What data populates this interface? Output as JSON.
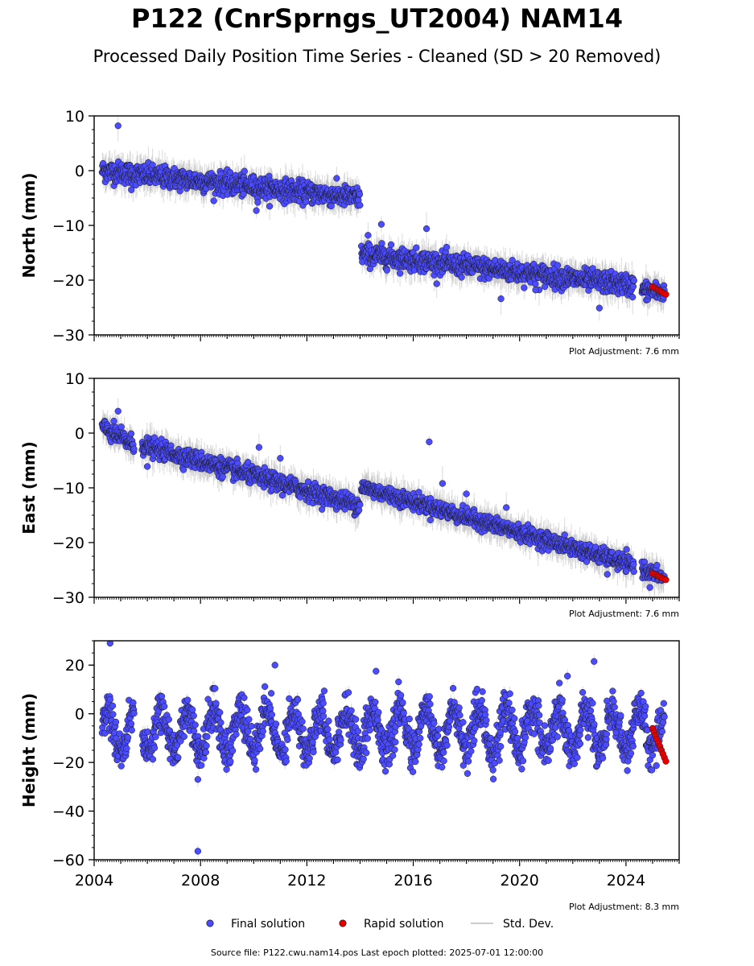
{
  "title": "P122 (CnrSprngs_UT2004) NAM14",
  "subtitle": "Processed Daily Position Time Series - Cleaned (SD > 20 Removed)",
  "source_line": "Source file: P122.cwu.nam14.pos  Last epoch plotted: 2025-07-01 12:00:00",
  "colors": {
    "final": "#4b4bff",
    "rapid": "#e60000",
    "stddev": "#bbbbbb"
  },
  "legend": [
    {
      "key": "final",
      "label": "Final solution"
    },
    {
      "key": "rapid",
      "label": "Rapid solution"
    },
    {
      "key": "stddev",
      "label": "Std. Dev."
    }
  ],
  "chart_data": [
    {
      "type": "scatter",
      "name": "north",
      "ylabel": "North (mm)",
      "ylim": [
        -30,
        10
      ],
      "yticks": [
        10,
        0,
        -10,
        -20,
        -30
      ],
      "xlim": [
        2004.0,
        2026.0
      ],
      "adjustment": "Plot Adjustment: 7.6 mm",
      "trend": [
        {
          "x0": 2004.3,
          "x1": 2014.0,
          "y0": 0.0,
          "y1": -5.0,
          "noise": 1.2
        },
        {
          "x0": 2014.05,
          "x1": 2024.3,
          "y0": -15.2,
          "y1": -21.0,
          "noise": 1.2
        },
        {
          "x0": 2024.6,
          "x1": 2025.45,
          "y0": -21.8,
          "y1": -22.3,
          "noise": 1.0
        }
      ],
      "outliers": [
        [
          2004.9,
          8.2
        ],
        [
          2005.4,
          -3.5
        ],
        [
          2010.1,
          -7.3
        ],
        [
          2014.3,
          -11.8
        ],
        [
          2014.8,
          -9.8
        ],
        [
          2016.5,
          -10.6
        ],
        [
          2019.3,
          -23.4
        ],
        [
          2023.0,
          -25.1
        ],
        [
          2020.6,
          -21.8
        ]
      ],
      "rapid": {
        "x0": 2025.0,
        "x1": 2025.5,
        "y0": -21.2,
        "y1": -22.6,
        "n": 8
      }
    },
    {
      "type": "scatter",
      "name": "east",
      "ylabel": "East (mm)",
      "ylim": [
        -30,
        10
      ],
      "yticks": [
        10,
        0,
        -10,
        -20,
        -30
      ],
      "xlim": [
        2004.0,
        2026.0
      ],
      "adjustment": "Plot Adjustment: 7.6 mm",
      "trend": [
        {
          "x0": 2004.3,
          "x1": 2005.5,
          "y0": 1.0,
          "y1": -2.2,
          "noise": 1.0
        },
        {
          "x0": 2005.8,
          "x1": 2014.0,
          "y0": -2.2,
          "y1": -13.2,
          "noise": 1.0
        },
        {
          "x0": 2014.05,
          "x1": 2024.3,
          "y0": -9.8,
          "y1": -24.2,
          "noise": 0.9
        },
        {
          "x0": 2024.6,
          "x1": 2025.45,
          "y0": -24.8,
          "y1": -26.5,
          "noise": 0.8
        }
      ],
      "outliers": [
        [
          2004.9,
          4.0
        ],
        [
          2006.0,
          -6.1
        ],
        [
          2010.2,
          -2.6
        ],
        [
          2011.0,
          -4.6
        ],
        [
          2016.6,
          -1.6
        ],
        [
          2017.1,
          -9.2
        ],
        [
          2018.0,
          -11.1
        ],
        [
          2019.5,
          -13.6
        ],
        [
          2023.3,
          -25.8
        ],
        [
          2024.9,
          -28.2
        ]
      ],
      "rapid": {
        "x0": 2025.0,
        "x1": 2025.5,
        "y0": -25.6,
        "y1": -26.8,
        "n": 8
      }
    },
    {
      "type": "scatter",
      "name": "height",
      "ylabel": "Height (mm)",
      "ylim": [
        -60,
        30
      ],
      "yticks": [
        20,
        0,
        -20,
        -40,
        -60
      ],
      "xlim": [
        2004.0,
        2026.0
      ],
      "xticks": [
        2004,
        2008,
        2012,
        2016,
        2020,
        2024
      ],
      "adjustment": "Plot Adjustment: 8.3 mm",
      "seasonal": {
        "x0": 2004.3,
        "x1": 2025.45,
        "gap": [
          2005.5,
          2005.8
        ],
        "base": -7.0,
        "amp": 8.5,
        "noise": 4.0
      },
      "outliers": [
        [
          2004.6,
          29.0
        ],
        [
          2010.8,
          20.0
        ],
        [
          2007.9,
          -56.5
        ],
        [
          2007.9,
          -27.0
        ],
        [
          2014.6,
          17.5
        ],
        [
          2022.8,
          21.5
        ],
        [
          2021.8,
          15.5
        ]
      ],
      "rapid": {
        "x0": 2025.0,
        "x1": 2025.5,
        "y0": -6.0,
        "y1": -19.5,
        "n": 10
      }
    }
  ]
}
